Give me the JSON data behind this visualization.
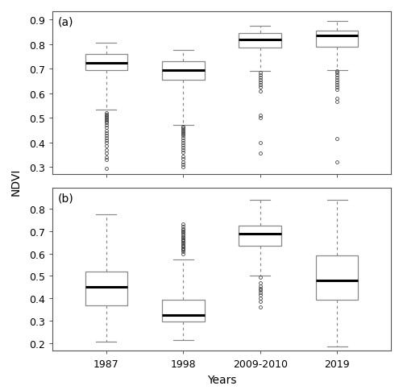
{
  "panel_a_label": "(a)",
  "panel_b_label": "(b)",
  "categories": [
    "1987",
    "1998",
    "2009-2010",
    "2019"
  ],
  "ylabel": "NDVI",
  "xlabel": "Years",
  "panel_a": {
    "ylim": [
      0.27,
      0.935
    ],
    "yticks": [
      0.3,
      0.4,
      0.5,
      0.6,
      0.7,
      0.8,
      0.9
    ],
    "boxes": [
      {
        "q1": 0.695,
        "median": 0.725,
        "q3": 0.76,
        "whislo": 0.535,
        "whishi": 0.805,
        "fliers_low": [
          0.52,
          0.515,
          0.51,
          0.505,
          0.5,
          0.495,
          0.49,
          0.485,
          0.48,
          0.47,
          0.46,
          0.45,
          0.44,
          0.43,
          0.42,
          0.41,
          0.4,
          0.385,
          0.37,
          0.355,
          0.34,
          0.33,
          0.295
        ]
      },
      {
        "q1": 0.655,
        "median": 0.695,
        "q3": 0.73,
        "whislo": 0.47,
        "whishi": 0.775,
        "fliers_low": [
          0.465,
          0.46,
          0.455,
          0.45,
          0.445,
          0.44,
          0.435,
          0.43,
          0.42,
          0.41,
          0.4,
          0.39,
          0.38,
          0.37,
          0.36,
          0.345,
          0.335,
          0.32,
          0.31,
          0.3
        ]
      },
      {
        "q1": 0.785,
        "median": 0.82,
        "q3": 0.845,
        "whislo": 0.69,
        "whishi": 0.875,
        "fliers_low": [
          0.685,
          0.675,
          0.665,
          0.655,
          0.645,
          0.635,
          0.625,
          0.61,
          0.51,
          0.5,
          0.4,
          0.355
        ]
      },
      {
        "q1": 0.79,
        "median": 0.835,
        "q3": 0.855,
        "whislo": 0.695,
        "whishi": 0.895,
        "fliers_low": [
          0.69,
          0.685,
          0.675,
          0.665,
          0.655,
          0.645,
          0.635,
          0.625,
          0.615,
          0.58,
          0.565,
          0.415,
          0.32
        ]
      }
    ]
  },
  "panel_b": {
    "ylim": [
      0.165,
      0.895
    ],
    "yticks": [
      0.2,
      0.3,
      0.4,
      0.5,
      0.6,
      0.7,
      0.8
    ],
    "boxes": [
      {
        "q1": 0.37,
        "median": 0.45,
        "q3": 0.52,
        "whislo": 0.205,
        "whishi": 0.775,
        "fliers_low": [],
        "fliers_high": []
      },
      {
        "q1": 0.295,
        "median": 0.325,
        "q3": 0.395,
        "whislo": 0.215,
        "whishi": 0.575,
        "fliers_low": [],
        "fliers_high": [
          0.6,
          0.61,
          0.615,
          0.62,
          0.625,
          0.63,
          0.635,
          0.64,
          0.645,
          0.65,
          0.655,
          0.66,
          0.665,
          0.67,
          0.675,
          0.68,
          0.69,
          0.695,
          0.7,
          0.705,
          0.71,
          0.72,
          0.73
        ]
      },
      {
        "q1": 0.635,
        "median": 0.69,
        "q3": 0.725,
        "whislo": 0.5,
        "whishi": 0.84,
        "fliers_low": [
          0.495,
          0.47,
          0.455,
          0.445,
          0.435,
          0.425,
          0.415,
          0.4,
          0.385,
          0.36
        ],
        "fliers_high": []
      },
      {
        "q1": 0.395,
        "median": 0.48,
        "q3": 0.59,
        "whislo": 0.185,
        "whishi": 0.84,
        "fliers_low": [],
        "fliers_high": []
      }
    ]
  }
}
